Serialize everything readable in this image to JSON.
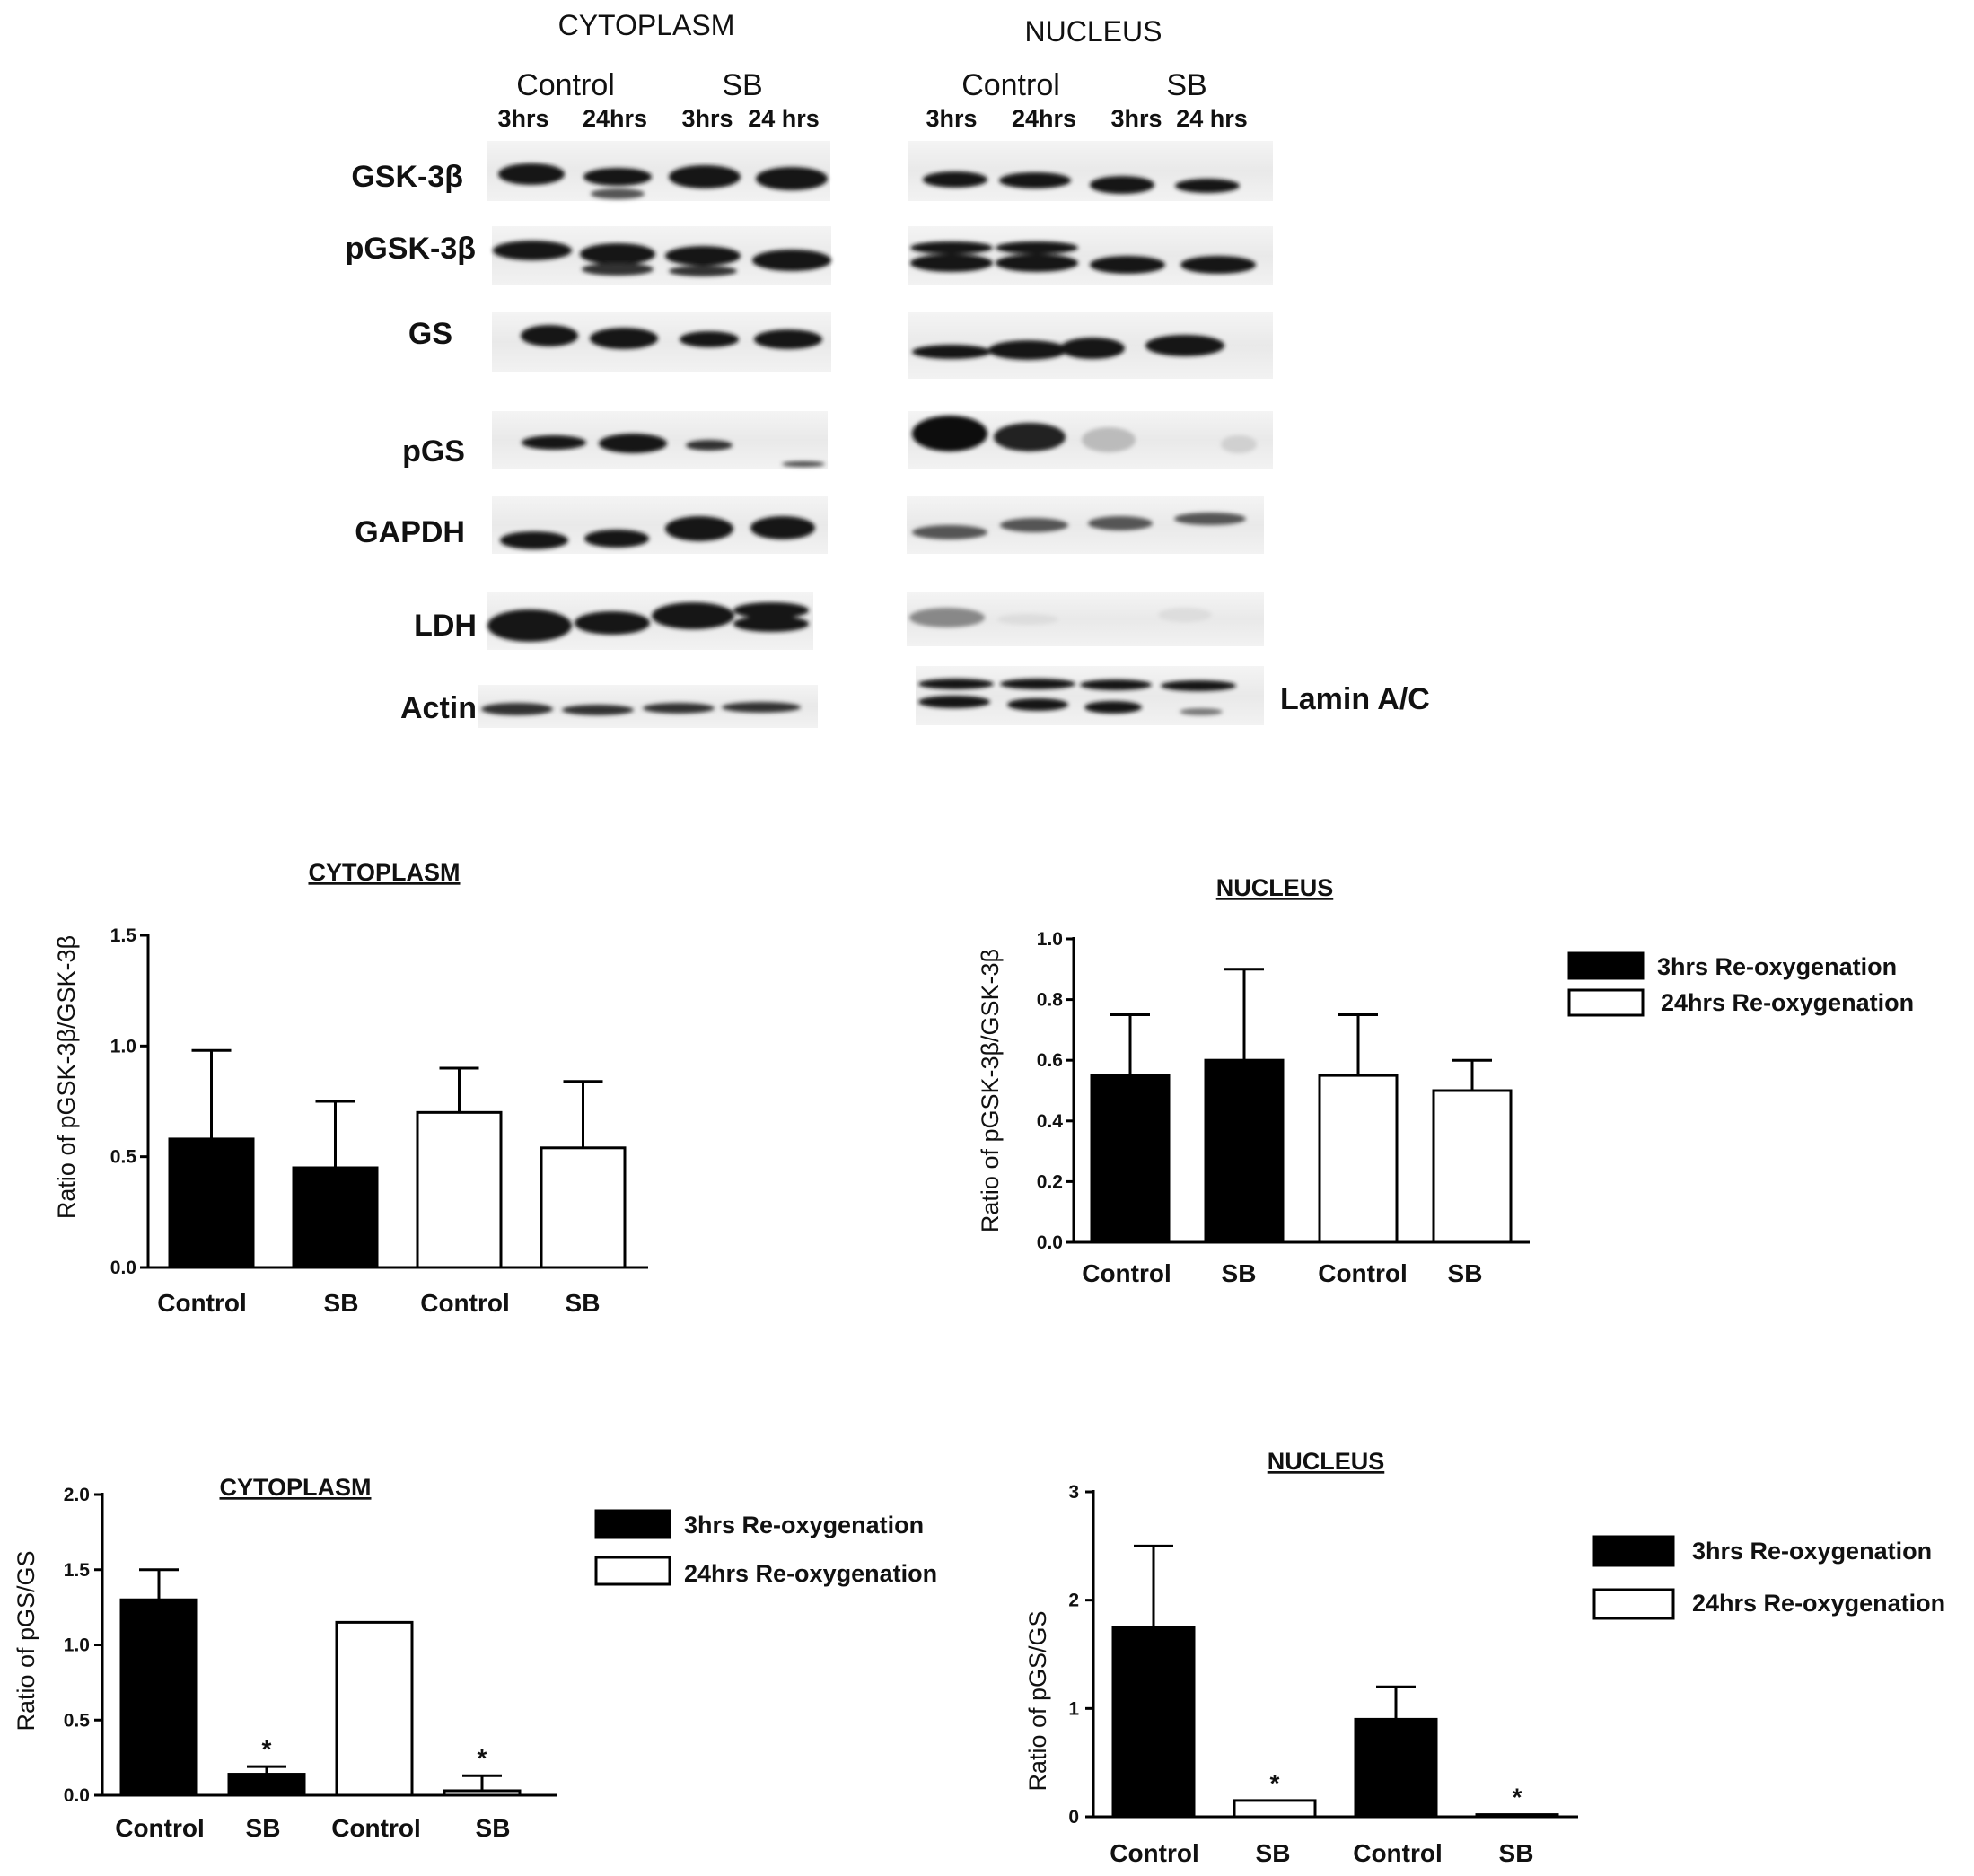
{
  "blot": {
    "panels": [
      {
        "title": "CYTOPLASM",
        "groups": [
          "Control",
          "SB"
        ],
        "times": [
          "3hrs",
          "24hrs",
          "3hrs",
          "24 hrs"
        ]
      },
      {
        "title": "NUCLEUS",
        "groups": [
          "Control",
          "SB"
        ],
        "times": [
          "3hrs",
          "24hrs",
          "3hrs",
          "24 hrs"
        ]
      }
    ],
    "rows": [
      "GSK-3β",
      "pGSK-3β",
      "GS",
      "pGS",
      "GAPDH",
      "LDH",
      "Actin"
    ],
    "extra_label": "Lamin A/C"
  },
  "legend": {
    "filled": "3hrs Re-oxygenation",
    "open": "24hrs Re-oxygenation"
  },
  "chart_data": [
    {
      "type": "bar",
      "title": "CYTOPLASM",
      "ylabel": "Ratio of pGSK-3β/GSK-3β",
      "ylim": [
        0,
        1.5
      ],
      "yticks": [
        "0.0",
        "0.5",
        "1.0",
        "1.5"
      ],
      "categories": [
        "Control",
        "SB",
        "Control",
        "SB"
      ],
      "fill": [
        "filled",
        "filled",
        "open",
        "open"
      ],
      "values": [
        0.58,
        0.45,
        0.7,
        0.54
      ],
      "errors": [
        0.4,
        0.3,
        0.2,
        0.3
      ],
      "significance": [
        "",
        "",
        "",
        ""
      ]
    },
    {
      "type": "bar",
      "title": "NUCLEUS",
      "ylabel": "Ratio of pGSK-3β/GSK-3β",
      "ylim": [
        0,
        1.0
      ],
      "yticks": [
        "0.0",
        "0.2",
        "0.4",
        "0.6",
        "0.8",
        "1.0"
      ],
      "categories": [
        "Control",
        "SB",
        "Control",
        "SB"
      ],
      "fill": [
        "filled",
        "filled",
        "open",
        "open"
      ],
      "values": [
        0.55,
        0.6,
        0.55,
        0.5
      ],
      "errors": [
        0.2,
        0.3,
        0.2,
        0.1
      ],
      "significance": [
        "",
        "",
        "",
        ""
      ]
    },
    {
      "type": "bar",
      "title": "CYTOPLASM",
      "ylabel": "Ratio of pGS/GS",
      "ylim": [
        0,
        2.0
      ],
      "yticks": [
        "0.0",
        "0.5",
        "1.0",
        "1.5",
        "2.0"
      ],
      "categories": [
        "Control",
        "SB",
        "Control",
        "SB"
      ],
      "fill": [
        "filled",
        "filled",
        "open",
        "open"
      ],
      "values": [
        1.3,
        0.14,
        1.15,
        0.03
      ],
      "errors": [
        0.2,
        0.05,
        0.0,
        0.1
      ],
      "significance": [
        "",
        "*",
        "",
        "*"
      ]
    },
    {
      "type": "bar",
      "title": "NUCLEUS",
      "ylabel": "Ratio of pGS/GS",
      "ylim": [
        0,
        3
      ],
      "yticks": [
        "0",
        "1",
        "2",
        "3"
      ],
      "categories": [
        "Control",
        "SB",
        "Control",
        "SB"
      ],
      "fill": [
        "filled",
        "open",
        "filled",
        "open"
      ],
      "values": [
        1.75,
        0.15,
        0.9,
        0.02
      ],
      "errors": [
        0.75,
        0.0,
        0.3,
        0.0
      ],
      "significance": [
        "",
        "*",
        "",
        "*"
      ]
    }
  ]
}
